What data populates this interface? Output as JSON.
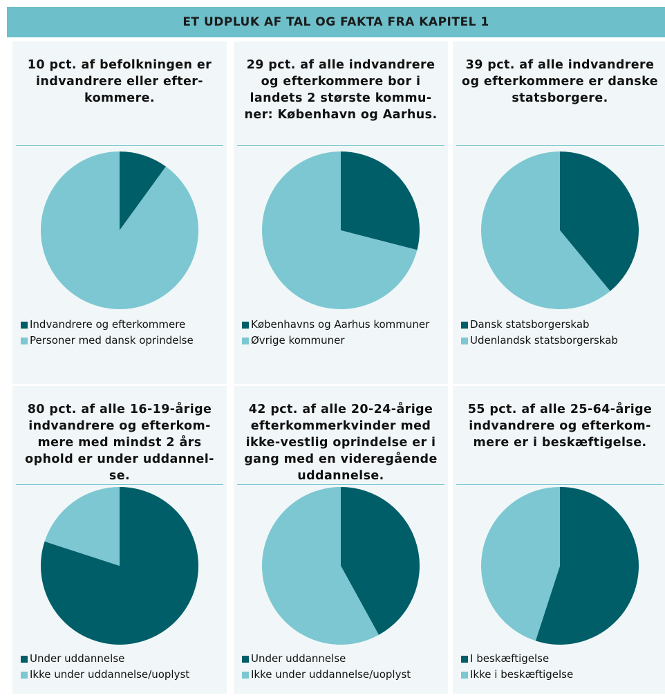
{
  "header": {
    "title": "ET UDPLUK AF TAL OG FAKTA FRA KAPITEL 1"
  },
  "chart_data": [
    {
      "type": "pie",
      "title": "10 pct. af befolkningen er\nindvandrere eller efter-\nkommere.",
      "categories": [
        "Indvandrere og efterkommere",
        "Personer med dansk oprindelse"
      ],
      "values": [
        10,
        90
      ],
      "colors": [
        "#005e69",
        "#7cc7d2"
      ]
    },
    {
      "type": "pie",
      "title": "29 pct. af alle indvandrere\nog efterkommere bor i\nlandets 2 største kommu-\nner: København og Aarhus.",
      "categories": [
        "Københavns og Aarhus kommuner",
        "Øvrige kommuner"
      ],
      "values": [
        29,
        71
      ],
      "colors": [
        "#005e69",
        "#7cc7d2"
      ]
    },
    {
      "type": "pie",
      "title": "39 pct. af alle indvandrere\nog efterkommere er danske\nstatsborgere.",
      "categories": [
        "Dansk statsborgerskab",
        "Udenlandsk statsborgerskab"
      ],
      "values": [
        39,
        61
      ],
      "colors": [
        "#005e69",
        "#7cc7d2"
      ]
    },
    {
      "type": "pie",
      "title": "80 pct. af alle 16-19-årige\nindvandrere og efterkom-\nmere med mindst 2 års\nophold er under uddannel-\nse.",
      "categories": [
        "Under uddannelse",
        "Ikke under uddannelse/uoplyst"
      ],
      "values": [
        80,
        20
      ],
      "colors": [
        "#005e69",
        "#7cc7d2"
      ]
    },
    {
      "type": "pie",
      "title": "42 pct. af alle 20-24-årige\nefterkommerkvinder med\nikke-vestlig oprindelse er i\ngang med en videregående\nuddannelse.",
      "categories": [
        "Under uddannelse",
        "Ikke under uddannelse/uoplyst"
      ],
      "values": [
        42,
        58
      ],
      "colors": [
        "#005e69",
        "#7cc7d2"
      ]
    },
    {
      "type": "pie",
      "title": "55 pct. af alle 25-64-årige\nindvandrere og efterkom-\nmere er i beskæftigelse.",
      "categories": [
        "I beskæftigelse",
        "Ikke i beskæftigelse"
      ],
      "values": [
        55,
        45
      ],
      "colors": [
        "#005e69",
        "#7cc7d2"
      ]
    }
  ]
}
